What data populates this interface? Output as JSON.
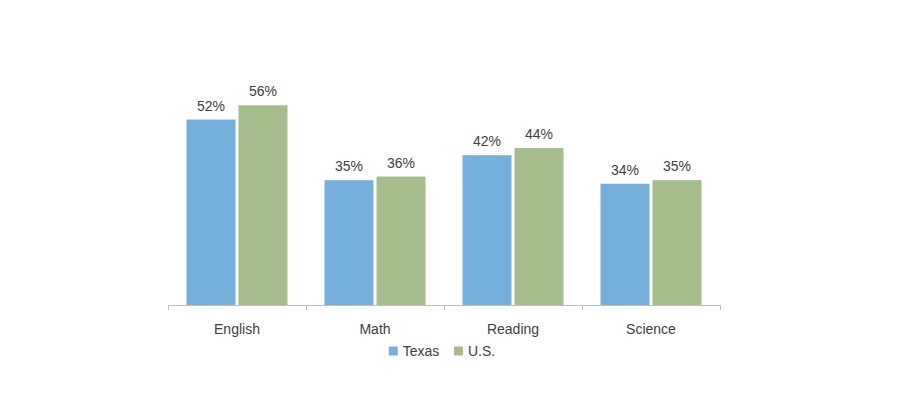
{
  "chart_data": {
    "type": "bar",
    "categories": [
      "English",
      "Math",
      "Reading",
      "Science"
    ],
    "series": [
      {
        "name": "Texas",
        "color": "#75B0DD",
        "values": [
          52,
          35,
          42,
          34
        ],
        "value_labels": [
          "52%",
          "35%",
          "42%",
          "34%"
        ]
      },
      {
        "name": "U.S.",
        "color": "#A4BD8B",
        "values": [
          56,
          36,
          44,
          35
        ],
        "value_labels": [
          "56%",
          "36%",
          "44%",
          "35%"
        ]
      }
    ],
    "ylim": [
      0,
      60
    ],
    "data_labels": true,
    "tick_labels": "x",
    "legend": "bottom",
    "grid": false
  }
}
